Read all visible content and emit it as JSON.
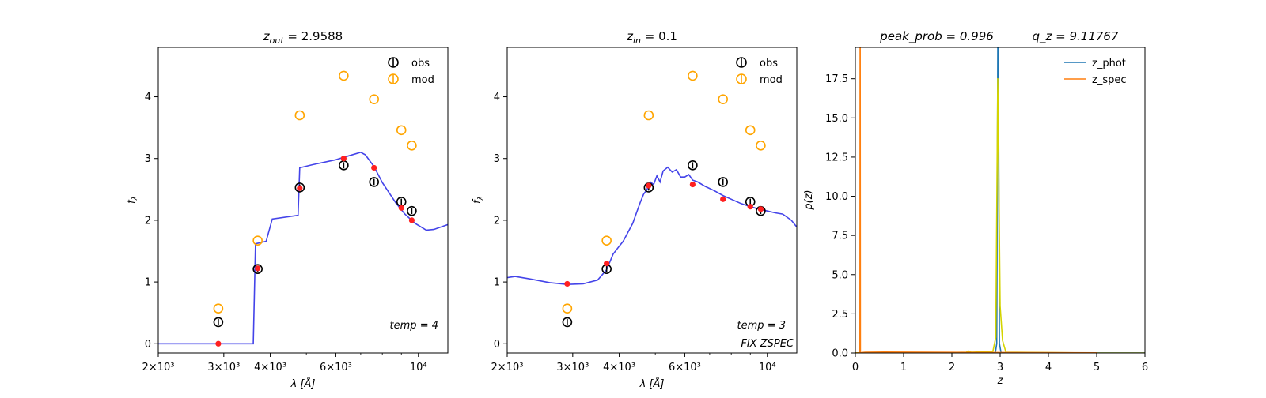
{
  "chart_data": [
    {
      "type": "scatter",
      "title": "z_out = 2.9588",
      "title_main": "z",
      "title_sub": "out",
      "title_rest": " = 2.9588",
      "xlabel": "λ [Å]",
      "ylabel": "f_λ",
      "ylabel_main": "f",
      "ylabel_sub": "λ",
      "xscale": "log",
      "xlim": [
        2000,
        12000
      ],
      "ylim": [
        -0.15,
        4.8
      ],
      "xticks": [
        {
          "v": 2000,
          "label": "2×10³"
        },
        {
          "v": 3000,
          "label": "3×10³"
        },
        {
          "v": 4000,
          "label": "4×10³"
        },
        {
          "v": 6000,
          "label": "6×10³"
        },
        {
          "v": 10000,
          "label": "10⁴"
        }
      ],
      "yticks": [
        {
          "v": 0,
          "label": "0"
        },
        {
          "v": 1,
          "label": "1"
        },
        {
          "v": 2,
          "label": "2"
        },
        {
          "v": 3,
          "label": "3"
        },
        {
          "v": 4,
          "label": "4"
        }
      ],
      "legend": {
        "placement": "top-right",
        "entries": [
          {
            "name": "obs",
            "color": "#000000"
          },
          {
            "name": "mod",
            "color": "#ffa500"
          }
        ]
      },
      "annotations": [
        "temp = 4"
      ],
      "obs": {
        "x": [
          2900,
          3700,
          4800,
          6300,
          7600,
          9000,
          9600
        ],
        "y": [
          0.35,
          1.21,
          2.53,
          2.89,
          2.62,
          2.3,
          2.15
        ],
        "err": [
          0.05,
          0.05,
          0.05,
          0.05,
          0.05,
          0.05,
          0.05
        ],
        "color": "#000000"
      },
      "mod": {
        "x": [
          2900,
          3700,
          4800,
          6300,
          7600,
          9000,
          9600
        ],
        "y": [
          0.57,
          1.67,
          3.7,
          4.34,
          3.96,
          3.46,
          3.21
        ],
        "color": "#ffa500"
      },
      "fit_points": {
        "x": [
          2900,
          3700,
          4800,
          6300,
          7600,
          9000,
          9600
        ],
        "y": [
          0.0,
          1.22,
          2.52,
          3.0,
          2.85,
          2.2,
          2.0
        ],
        "color": "#ff2020"
      },
      "sed": {
        "color": "#3a3ae8",
        "x": [
          2000,
          3600,
          3650,
          3720,
          3900,
          4050,
          4750,
          4800,
          5200,
          6000,
          6300,
          7000,
          7200,
          7600,
          8000,
          8700,
          9200,
          9800,
          10500,
          11000,
          12000
        ],
        "y": [
          0.0,
          0.0,
          1.62,
          1.63,
          1.66,
          2.02,
          2.08,
          2.85,
          2.9,
          2.98,
          3.02,
          3.1,
          3.06,
          2.87,
          2.61,
          2.28,
          2.1,
          1.95,
          1.84,
          1.85,
          1.93
        ]
      }
    },
    {
      "type": "scatter",
      "title": "z_in = 0.1",
      "title_main": "z",
      "title_sub": "in",
      "title_rest": " = 0.1",
      "xlabel": "λ [Å]",
      "ylabel": "f_λ",
      "ylabel_main": "f",
      "ylabel_sub": "λ",
      "xscale": "log",
      "xlim": [
        2000,
        12000
      ],
      "ylim": [
        -0.15,
        4.8
      ],
      "xticks": [
        {
          "v": 2000,
          "label": "2×10³"
        },
        {
          "v": 3000,
          "label": "3×10³"
        },
        {
          "v": 4000,
          "label": "4×10³"
        },
        {
          "v": 6000,
          "label": "6×10³"
        },
        {
          "v": 10000,
          "label": "10⁴"
        }
      ],
      "yticks": [
        {
          "v": 0,
          "label": "0"
        },
        {
          "v": 1,
          "label": "1"
        },
        {
          "v": 2,
          "label": "2"
        },
        {
          "v": 3,
          "label": "3"
        },
        {
          "v": 4,
          "label": "4"
        }
      ],
      "legend": {
        "placement": "top-right",
        "entries": [
          {
            "name": "obs",
            "color": "#000000"
          },
          {
            "name": "mod",
            "color": "#ffa500"
          }
        ]
      },
      "annotations": [
        "temp = 3",
        "FIX ZSPEC"
      ],
      "obs": {
        "x": [
          2900,
          3700,
          4800,
          6300,
          7600,
          9000,
          9600
        ],
        "y": [
          0.35,
          1.21,
          2.53,
          2.89,
          2.62,
          2.3,
          2.15
        ],
        "err": [
          0.05,
          0.05,
          0.05,
          0.05,
          0.05,
          0.05,
          0.05
        ],
        "color": "#000000"
      },
      "mod": {
        "x": [
          2900,
          3700,
          4800,
          6300,
          7600,
          9000,
          9600
        ],
        "y": [
          0.57,
          1.67,
          3.7,
          4.34,
          3.96,
          3.46,
          3.21
        ],
        "color": "#ffa500"
      },
      "fit_points": {
        "x": [
          2900,
          3700,
          4800,
          6300,
          7600,
          9000,
          9600
        ],
        "y": [
          0.97,
          1.3,
          2.56,
          2.58,
          2.34,
          2.22,
          2.18
        ],
        "color": "#ff2020"
      },
      "sed": {
        "color": "#3a3ae8",
        "x": [
          2000,
          2100,
          2300,
          2600,
          2900,
          3200,
          3500,
          3700,
          3850,
          4000,
          4100,
          4200,
          4350,
          4450,
          4550,
          4650,
          4750,
          4850,
          4950,
          5050,
          5150,
          5250,
          5400,
          5550,
          5700,
          5850,
          6000,
          6150,
          6300,
          6500,
          6800,
          7200,
          7600,
          8000,
          8500,
          9000,
          9500,
          10000,
          10500,
          11000,
          11600,
          12000
        ],
        "y": [
          1.07,
          1.09,
          1.05,
          0.99,
          0.96,
          0.97,
          1.03,
          1.2,
          1.45,
          1.58,
          1.66,
          1.78,
          1.95,
          2.12,
          2.28,
          2.42,
          2.5,
          2.62,
          2.58,
          2.72,
          2.62,
          2.8,
          2.86,
          2.78,
          2.82,
          2.7,
          2.7,
          2.74,
          2.65,
          2.62,
          2.55,
          2.48,
          2.4,
          2.34,
          2.27,
          2.22,
          2.18,
          2.15,
          2.12,
          2.1,
          2.0,
          1.89
        ]
      }
    },
    {
      "type": "line",
      "title": "peak_prob = 0.996    q_z = 9.11767",
      "title_left": "peak_prob = 0.996",
      "title_right": "q_z = 9.11767",
      "xlabel": "z",
      "ylabel": "p(z)",
      "xlim": [
        0,
        6
      ],
      "ylim": [
        0,
        19.5
      ],
      "xticks": [
        {
          "v": 0,
          "label": "0"
        },
        {
          "v": 1,
          "label": "1"
        },
        {
          "v": 2,
          "label": "2"
        },
        {
          "v": 3,
          "label": "3"
        },
        {
          "v": 4,
          "label": "4"
        },
        {
          "v": 5,
          "label": "5"
        },
        {
          "v": 6,
          "label": "6"
        }
      ],
      "yticks": [
        {
          "v": 0,
          "label": "0.0"
        },
        {
          "v": 2.5,
          "label": "2.5"
        },
        {
          "v": 5,
          "label": "5.0"
        },
        {
          "v": 7.5,
          "label": "7.5"
        },
        {
          "v": 10,
          "label": "10.0"
        },
        {
          "v": 12.5,
          "label": "12.5"
        },
        {
          "v": 15,
          "label": "15.0"
        },
        {
          "v": 17.5,
          "label": "17.5"
        }
      ],
      "legend": {
        "placement": "top-right",
        "entries": [
          {
            "name": "z_phot",
            "color": "#1f77b4"
          },
          {
            "name": "z_spec",
            "color": "#ff7f0e"
          }
        ]
      },
      "series": [
        {
          "name": "z_phot",
          "color": "#1f77b4",
          "x": [
            0,
            2.8,
            2.9,
            2.93,
            2.958,
            2.985,
            3.02,
            3.1,
            6
          ],
          "y": [
            0,
            0,
            0,
            0.6,
            25,
            0.6,
            0,
            0,
            0
          ]
        },
        {
          "name": "z_spec",
          "color": "#ff7f0e",
          "x": [
            0.095,
            0.1,
            0.105
          ],
          "y": [
            0,
            25,
            0
          ]
        },
        {
          "name": "",
          "color": "#d4d400",
          "x": [
            0,
            1.0,
            2.0,
            2.3,
            2.35,
            2.4,
            2.85,
            2.91,
            2.95,
            3.0,
            3.05,
            3.12,
            5.0,
            6.0
          ],
          "y": [
            0.01,
            0.01,
            0.03,
            0.05,
            0.12,
            0.05,
            0.1,
            1.0,
            17.5,
            3.0,
            0.8,
            0.05,
            0.0,
            0.0
          ]
        },
        {
          "name": "",
          "color": "#ff7f0e",
          "x": [
            0.0,
            0.05,
            0.2,
            0.6,
            1.5,
            3.0,
            5.0
          ],
          "y": [
            0.0,
            0.0,
            0.05,
            0.06,
            0.05,
            0.03,
            0.01
          ]
        }
      ]
    }
  ]
}
